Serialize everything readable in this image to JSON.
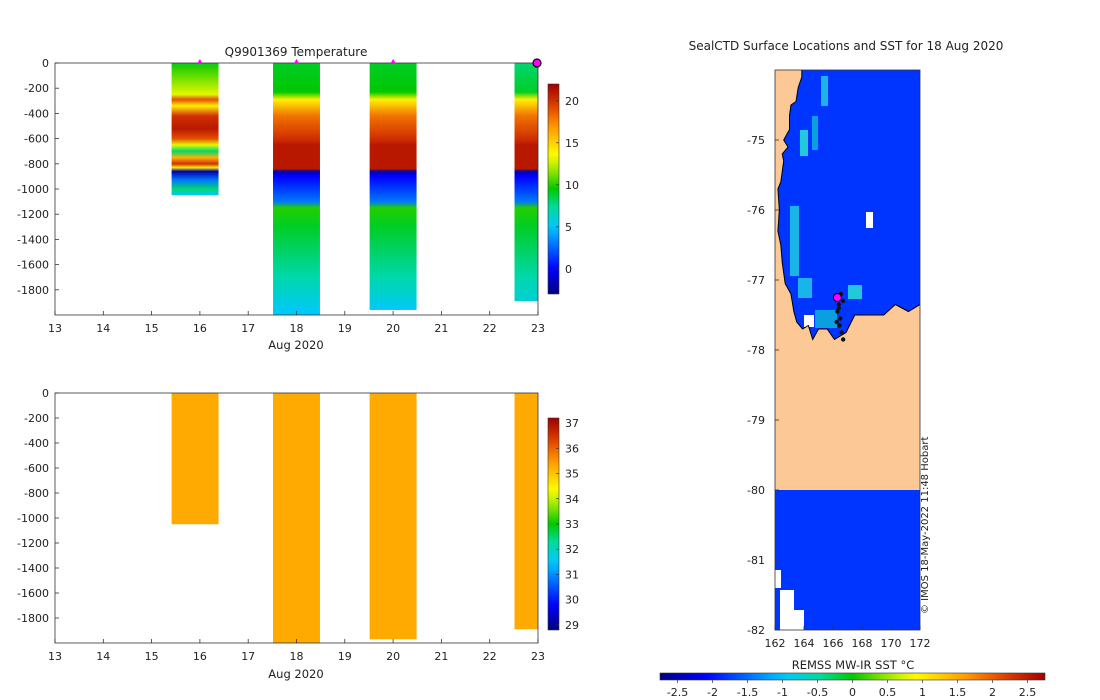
{
  "chart_data": [
    {
      "id": "temp",
      "type": "heatmap",
      "title": "Q9901369  Temperature",
      "xlabel": "Aug 2020",
      "xlim": [
        13,
        23
      ],
      "xticks": [
        13,
        14,
        15,
        16,
        17,
        18,
        19,
        20,
        21,
        22,
        23
      ],
      "yticks": [
        0,
        -200,
        -400,
        -600,
        -800,
        -1000,
        -1200,
        -1400,
        -1600,
        -1800
      ],
      "ylim": [
        -2000,
        0
      ],
      "colorbar": {
        "min": -3,
        "max": 22,
        "ticks": [
          0,
          5,
          10,
          15,
          20
        ]
      },
      "markers": [
        16,
        18,
        20
      ],
      "end_marker": 23,
      "profiles": [
        {
          "day": 15.9,
          "bottom": -1050,
          "stops": [
            [
              0,
              9
            ],
            [
              -30,
              10
            ],
            [
              -250,
              13
            ],
            [
              -290,
              19
            ],
            [
              -340,
              14
            ],
            [
              -420,
              20
            ],
            [
              -520,
              21
            ],
            [
              -600,
              19
            ],
            [
              -650,
              13
            ],
            [
              -700,
              8
            ],
            [
              -750,
              16
            ],
            [
              -800,
              20
            ],
            [
              -830,
              14
            ],
            [
              -860,
              -2
            ],
            [
              -930,
              3
            ],
            [
              -1000,
              8
            ],
            [
              -1050,
              5
            ]
          ]
        },
        {
          "day": 18.0,
          "bottom": -2000,
          "stops": [
            [
              0,
              9
            ],
            [
              -230,
              9.5
            ],
            [
              -290,
              14
            ],
            [
              -420,
              18
            ],
            [
              -600,
              20
            ],
            [
              -650,
              21
            ],
            [
              -840,
              21
            ],
            [
              -860,
              -2
            ],
            [
              -900,
              0
            ],
            [
              -1100,
              3
            ],
            [
              -1150,
              10
            ],
            [
              -1300,
              9
            ],
            [
              -1700,
              7
            ],
            [
              -1850,
              6
            ],
            [
              -2000,
              5
            ]
          ]
        },
        {
          "day": 20.0,
          "bottom": -1960,
          "stops": [
            [
              0,
              9
            ],
            [
              -230,
              9.5
            ],
            [
              -290,
              14
            ],
            [
              -420,
              18
            ],
            [
              -600,
              20
            ],
            [
              -650,
              21
            ],
            [
              -840,
              21
            ],
            [
              -860,
              -2
            ],
            [
              -900,
              0
            ],
            [
              -1100,
              3
            ],
            [
              -1150,
              10
            ],
            [
              -1300,
              9
            ],
            [
              -1700,
              7
            ],
            [
              -1850,
              6
            ],
            [
              -1960,
              5
            ]
          ]
        },
        {
          "day": 23.0,
          "bottom": -1890,
          "stops": [
            [
              0,
              8
            ],
            [
              -230,
              9
            ],
            [
              -290,
              14
            ],
            [
              -420,
              18
            ],
            [
              -600,
              20
            ],
            [
              -650,
              21
            ],
            [
              -840,
              21
            ],
            [
              -860,
              -2
            ],
            [
              -900,
              0
            ],
            [
              -1100,
              3
            ],
            [
              -1150,
              10
            ],
            [
              -1300,
              9
            ],
            [
              -1700,
              7
            ],
            [
              -1890,
              6
            ]
          ]
        }
      ]
    },
    {
      "id": "salinity",
      "type": "heatmap",
      "title": "",
      "xlabel": "Aug 2020",
      "xlim": [
        13,
        23
      ],
      "xticks": [
        13,
        14,
        15,
        16,
        17,
        18,
        19,
        20,
        21,
        22,
        23
      ],
      "yticks": [
        0,
        -200,
        -400,
        -600,
        -800,
        -1000,
        -1200,
        -1400,
        -1600,
        -1800
      ],
      "ylim": [
        -2000,
        0
      ],
      "colorbar": {
        "min": 28.8,
        "max": 37.2,
        "ticks": [
          29,
          30,
          31,
          32,
          33,
          34,
          35,
          36,
          37
        ]
      },
      "profiles": [
        {
          "day": 15.9,
          "bottom": -1050,
          "value": 35.3
        },
        {
          "day": 18.0,
          "bottom": -2000,
          "value": 35.3
        },
        {
          "day": 20.0,
          "bottom": -1970,
          "value": 35.3
        },
        {
          "day": 23.0,
          "bottom": -1890,
          "value": 35.3
        }
      ]
    },
    {
      "id": "map",
      "type": "heatmap",
      "title": "SealCTD Surface Locations and SST for 18 Aug 2020",
      "xlabel": "",
      "xlim": [
        162,
        172
      ],
      "ylim": [
        -82,
        -74
      ],
      "xticks": [
        162,
        164,
        166,
        168,
        170,
        172
      ],
      "yticks": [
        -75,
        -76,
        -77,
        -78,
        -79,
        -80,
        -81,
        -82
      ],
      "colorbar": {
        "label": "REMSS MW-IR SST °C",
        "min": -2.75,
        "max": 2.75,
        "ticks": [
          -2.5,
          -2,
          -1.5,
          -1,
          -0.5,
          0,
          0.5,
          1,
          1.5,
          2,
          2.5
        ],
        "tick_labels": [
          "-2.5",
          "-2",
          "-1.5",
          "-1",
          "-0.5",
          "0",
          "0.5",
          "1",
          "1.5",
          "2",
          "2.5"
        ]
      },
      "ocean_sst": -1.8,
      "coastline": [
        [
          163.85,
          -74.0
        ],
        [
          163.85,
          -74.1
        ],
        [
          163.6,
          -74.25
        ],
        [
          163.45,
          -74.45
        ],
        [
          163.1,
          -74.5
        ],
        [
          163.0,
          -74.65
        ],
        [
          163.0,
          -74.85
        ],
        [
          162.6,
          -75.0
        ],
        [
          162.9,
          -75.1
        ],
        [
          162.5,
          -75.2
        ],
        [
          162.6,
          -75.3
        ],
        [
          162.5,
          -75.45
        ],
        [
          162.4,
          -75.6
        ],
        [
          162.2,
          -75.7
        ],
        [
          162.3,
          -76.0
        ],
        [
          162.2,
          -76.3
        ],
        [
          162.4,
          -76.5
        ],
        [
          162.5,
          -76.75
        ],
        [
          162.7,
          -77.05
        ],
        [
          163.1,
          -77.2
        ],
        [
          163.3,
          -77.45
        ],
        [
          163.5,
          -77.6
        ],
        [
          163.9,
          -77.7
        ],
        [
          164.3,
          -77.65
        ],
        [
          164.6,
          -77.85
        ],
        [
          165.0,
          -77.7
        ],
        [
          165.6,
          -77.7
        ],
        [
          166.1,
          -77.85
        ],
        [
          166.9,
          -77.75
        ],
        [
          167.5,
          -77.5
        ],
        [
          168.5,
          -77.5
        ],
        [
          169.5,
          -77.5
        ],
        [
          170.3,
          -77.35
        ],
        [
          171.2,
          -77.45
        ],
        [
          172.0,
          -77.35
        ]
      ],
      "seal_track": [
        [
          166.2,
          -77.25
        ],
        [
          166.4,
          -77.35
        ],
        [
          166.3,
          -77.45
        ],
        [
          166.5,
          -77.55
        ],
        [
          166.45,
          -77.65
        ],
        [
          166.6,
          -77.75
        ],
        [
          166.7,
          -77.85
        ],
        [
          166.4,
          -77.4
        ],
        [
          166.55,
          -77.2
        ],
        [
          166.7,
          -77.3
        ],
        [
          166.25,
          -77.6
        ]
      ],
      "seal_position": [
        166.3,
        -77.25
      ]
    }
  ],
  "credit": "© IMOS 18-May-2022 11:48 Hobart"
}
